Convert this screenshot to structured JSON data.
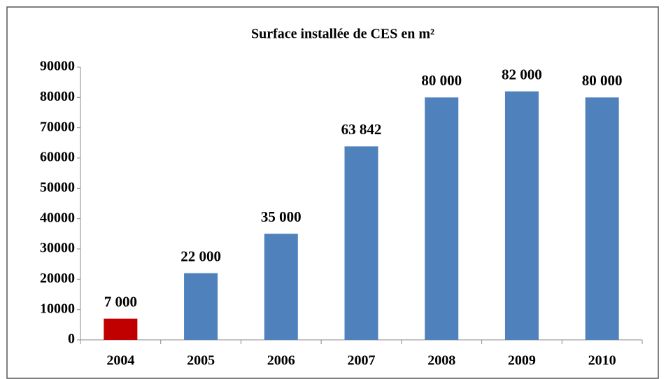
{
  "chart_data": {
    "type": "bar",
    "title": "Surface installée de CES en m²",
    "categories": [
      "2004",
      "2005",
      "2006",
      "2007",
      "2008",
      "2009",
      "2010"
    ],
    "values": [
      7000,
      22000,
      35000,
      63842,
      80000,
      82000,
      80000
    ],
    "value_labels": [
      "7 000",
      "22 000",
      "35 000",
      "63 842",
      "80 000",
      "82 000",
      "80 000"
    ],
    "colors": [
      "#c00000",
      "#4f81bd",
      "#4f81bd",
      "#4f81bd",
      "#4f81bd",
      "#4f81bd",
      "#4f81bd"
    ],
    "ylim": [
      0,
      90000
    ],
    "yticks": [
      0,
      10000,
      20000,
      30000,
      40000,
      50000,
      60000,
      70000,
      80000,
      90000
    ],
    "grid": false
  }
}
